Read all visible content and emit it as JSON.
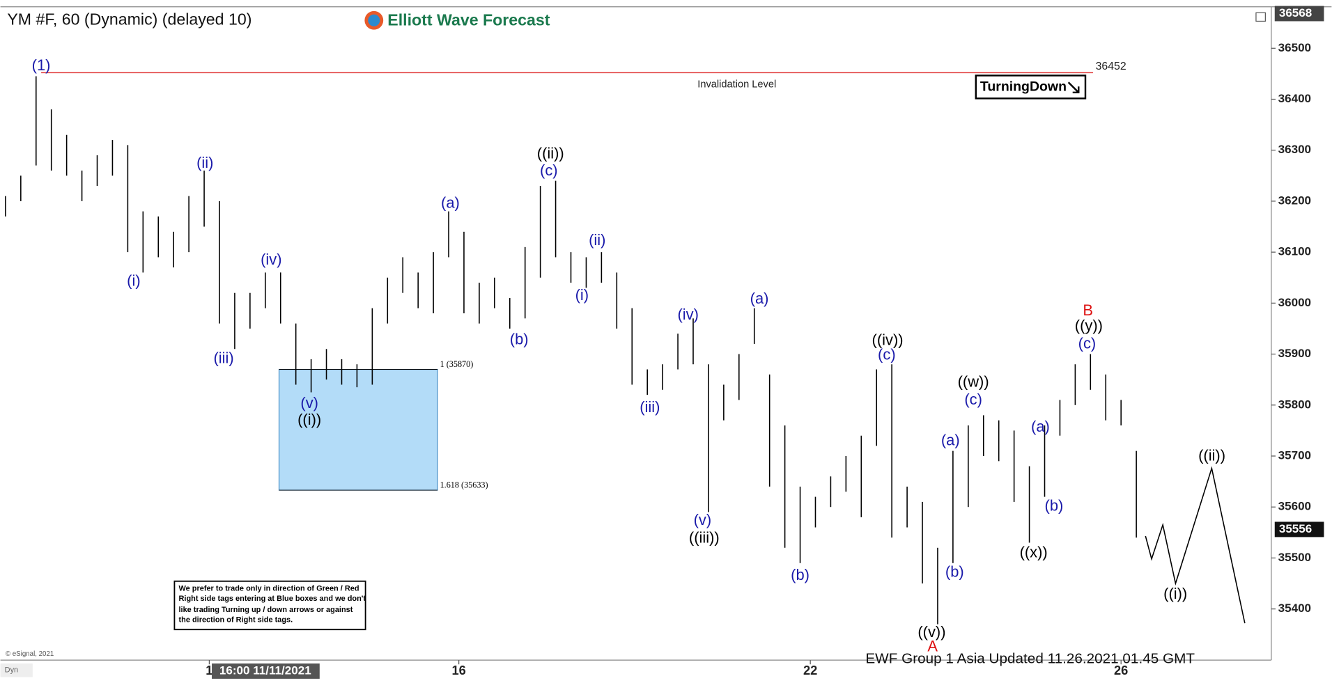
{
  "chart_data": {
    "type": "ohlc",
    "title": "YM #F, 60 (Dynamic) (delayed 10)",
    "brand": "Elliott Wave Forecast",
    "footer": "EWF Group 1 Asia Updated 11.26.2021 01.45 GMT",
    "copyright": "© eSignal, 2021",
    "corner_label": "Dyn",
    "signal": "TurningDown",
    "note": [
      "We prefer to trade only in direction of Green / Red",
      "Right side tags entering at Blue boxes and we don't",
      "like trading Turning up / down arrows or against",
      "the direction of Right side tags."
    ],
    "color": "#000000",
    "xlim": [
      0,
      249.5
    ],
    "ylim": [
      35303,
      36578
    ],
    "xticks": [
      {
        "value": 41,
        "label": "1"
      },
      {
        "value": 90,
        "label": "16"
      },
      {
        "value": 159,
        "label": "22"
      },
      {
        "value": 220,
        "label": "26"
      }
    ],
    "yticks": [
      35400,
      35500,
      35600,
      35700,
      35800,
      35900,
      36000,
      36100,
      36200,
      36300,
      36400,
      36500
    ],
    "cursor": {
      "value": 52,
      "label": "16:00 11/11/2021"
    },
    "price_tags": [
      36568,
      35556
    ],
    "x": [
      1,
      4,
      7,
      10,
      13,
      16,
      19,
      22,
      25,
      28,
      31,
      34,
      37,
      40,
      43,
      46,
      49,
      52,
      55,
      58,
      61,
      64,
      67,
      70,
      73,
      76,
      79,
      82,
      85,
      88,
      91,
      94,
      97,
      100,
      103,
      106,
      109,
      112,
      115,
      118,
      121,
      124,
      127,
      130,
      133,
      136,
      139,
      142,
      145,
      148,
      151,
      154,
      157,
      160,
      163,
      166,
      169,
      172,
      175,
      178,
      181,
      184,
      187,
      190,
      193,
      196,
      199,
      202,
      205,
      208,
      211,
      214,
      217,
      220,
      223
    ],
    "high": [
      36210,
      36250,
      36445,
      36380,
      36330,
      36260,
      36290,
      36320,
      36310,
      36180,
      36170,
      36140,
      36210,
      36260,
      36200,
      36020,
      36020,
      36060,
      36060,
      35960,
      35890,
      35910,
      35890,
      35880,
      35990,
      36050,
      36090,
      36060,
      36100,
      36180,
      36140,
      36040,
      36050,
      36010,
      36110,
      36230,
      36240,
      36100,
      36090,
      36100,
      36060,
      35990,
      35870,
      35880,
      35940,
      35970,
      35880,
      35840,
      35900,
      35990,
      35860,
      35760,
      35640,
      35620,
      35660,
      35700,
      35740,
      35870,
      35880,
      35640,
      35610,
      35520,
      35710,
      35760,
      35780,
      35770,
      35750,
      35680,
      35760,
      35810,
      35880,
      35900,
      35860,
      35810,
      35710
    ],
    "low": [
      36170,
      36200,
      36270,
      36260,
      36250,
      36200,
      36230,
      36250,
      36100,
      36060,
      36090,
      36070,
      36100,
      36150,
      35960,
      35910,
      35950,
      35990,
      35960,
      35840,
      35825,
      35850,
      35840,
      35835,
      35840,
      35960,
      36020,
      35990,
      35980,
      36090,
      35980,
      35960,
      35990,
      35950,
      35970,
      36050,
      36090,
      36040,
      36030,
      36040,
      35950,
      35840,
      35820,
      35830,
      35870,
      35880,
      35590,
      35770,
      35810,
      35920,
      35640,
      35520,
      35490,
      35560,
      35600,
      35630,
      35580,
      35720,
      35540,
      35560,
      35450,
      35370,
      35490,
      35600,
      35700,
      35690,
      35610,
      35530,
      35620,
      35740,
      35800,
      35830,
      35770,
      35760,
      35540
    ],
    "invalidation": {
      "value": 36452,
      "label": "Invalidation Level",
      "color": "#e03030",
      "xlim": [
        8,
        214.5
      ]
    },
    "zone": {
      "xlim": [
        54.7,
        85.8
      ],
      "color": "#b3dcf8",
      "levels": [
        {
          "value": 35870,
          "label": "1 (35870)"
        },
        {
          "value": 35633,
          "label": "1.618 (35633)"
        }
      ]
    },
    "projection": {
      "x": [
        224.8,
        226,
        228.2,
        230.7,
        237.8,
        244.3
      ],
      "y": [
        35543,
        35498,
        35565,
        35450,
        35676,
        35372
      ]
    },
    "annotations": [
      {
        "text": "(1)",
        "color": "#1a1aaa"
      },
      {
        "text": "(i)",
        "color": "#1a1aaa"
      },
      {
        "text": "(ii)",
        "color": "#1a1aaa"
      },
      {
        "text": "(iii)",
        "color": "#1a1aaa"
      },
      {
        "text": "(iv)",
        "color": "#1a1aaa"
      },
      {
        "text": "(v)",
        "color": "#1a1aaa"
      },
      {
        "text": "((i))",
        "color": "#000000"
      },
      {
        "text": "(a)",
        "color": "#1a1aaa"
      },
      {
        "text": "(b)",
        "color": "#1a1aaa"
      },
      {
        "text": "((ii))",
        "color": "#000000"
      },
      {
        "text": "(c)",
        "color": "#1a1aaa"
      },
      {
        "text": "(i)",
        "color": "#1a1aaa"
      },
      {
        "text": "(ii)",
        "color": "#1a1aaa"
      },
      {
        "text": "(iii)",
        "color": "#1a1aaa"
      },
      {
        "text": "(iv)",
        "color": "#1a1aaa"
      },
      {
        "text": "(v)",
        "color": "#1a1aaa"
      },
      {
        "text": "((iii))",
        "color": "#000000"
      },
      {
        "text": "(a)",
        "color": "#1a1aaa"
      },
      {
        "text": "(b)",
        "color": "#1a1aaa"
      },
      {
        "text": "((iv))",
        "color": "#000000"
      },
      {
        "text": "(c)",
        "color": "#1a1aaa"
      },
      {
        "text": "(a)",
        "color": "#1a1aaa"
      },
      {
        "text": "(b)",
        "color": "#1a1aaa"
      },
      {
        "text": "((w))",
        "color": "#000000"
      },
      {
        "text": "(c)",
        "color": "#1a1aaa"
      },
      {
        "text": "((v))",
        "color": "#000000"
      },
      {
        "text": "A",
        "color": "#dd1111"
      },
      {
        "text": "((x))",
        "color": "#000000"
      },
      {
        "text": "(a)",
        "color": "#1a1aaa"
      },
      {
        "text": "(b)",
        "color": "#1a1aaa"
      },
      {
        "text": "B",
        "color": "#dd1111"
      },
      {
        "text": "((y))",
        "color": "#000000"
      },
      {
        "text": "(c)",
        "color": "#1a1aaa"
      },
      {
        "text": "((ii))",
        "color": "#000000"
      },
      {
        "text": "((i))",
        "color": "#000000"
      }
    ]
  }
}
